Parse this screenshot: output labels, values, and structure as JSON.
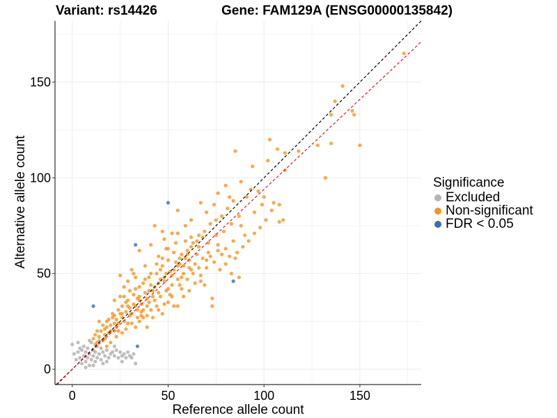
{
  "title_left": "Variant: rs14426",
  "title_right": "Gene: FAM129A (ENSG00000135842)",
  "colors": {
    "excluded": "#b3b3b3",
    "nonsig": "#f7941d",
    "sig": "#3e6ea8",
    "identity_line": "#000000",
    "fit_line": "#e3171b"
  },
  "legend": {
    "title": "Significance",
    "items": [
      {
        "label": "Excluded",
        "color": "#b3b3b3"
      },
      {
        "label": "Non-significant",
        "color": "#f7941d"
      },
      {
        "label": "FDR < 0.05",
        "color": "#3e6ea8"
      }
    ]
  },
  "chart_data": {
    "type": "scatter",
    "xlabel": "Reference allele count",
    "ylabel": "Alternative allele count",
    "xlim": [
      -9,
      182
    ],
    "ylim": [
      -8,
      182
    ],
    "xticks": [
      0,
      50,
      100,
      150
    ],
    "yticks": [
      0,
      50,
      100,
      150
    ],
    "grid": true,
    "legend_position": "right",
    "reference_lines": [
      {
        "name": "identity",
        "slope": 1.0,
        "intercept": 0,
        "style": "dashed"
      },
      {
        "name": "fit",
        "slope": 0.94,
        "intercept": 0,
        "style": "dashed"
      }
    ],
    "series": [
      {
        "name": "Excluded",
        "points": [
          [
            0,
            13
          ],
          [
            1,
            8
          ],
          [
            2,
            5
          ],
          [
            3,
            9
          ],
          [
            4,
            6
          ],
          [
            5,
            10
          ],
          [
            5,
            3
          ],
          [
            6,
            7
          ],
          [
            6,
            12
          ],
          [
            7,
            4
          ],
          [
            7,
            9
          ],
          [
            8,
            6
          ],
          [
            8,
            11
          ],
          [
            9,
            2
          ],
          [
            9,
            8
          ],
          [
            10,
            5
          ],
          [
            10,
            14
          ],
          [
            11,
            7
          ],
          [
            11,
            10
          ],
          [
            12,
            4
          ],
          [
            12,
            9
          ],
          [
            13,
            6
          ],
          [
            13,
            12
          ],
          [
            14,
            8
          ],
          [
            15,
            5
          ],
          [
            15,
            11
          ],
          [
            16,
            9
          ],
          [
            17,
            7
          ],
          [
            18,
            10
          ],
          [
            19,
            6
          ],
          [
            20,
            8
          ],
          [
            21,
            9
          ],
          [
            22,
            7
          ],
          [
            23,
            10
          ],
          [
            24,
            6
          ],
          [
            25,
            9
          ],
          [
            26,
            7
          ],
          [
            27,
            8
          ],
          [
            28,
            6
          ],
          [
            29,
            9
          ],
          [
            30,
            7
          ],
          [
            31,
            6
          ],
          [
            32,
            8
          ],
          [
            3,
            14
          ],
          [
            14,
            15
          ],
          [
            18,
            4
          ],
          [
            22,
            12
          ],
          [
            33,
            3
          ],
          [
            9,
            15
          ],
          [
            4,
            11
          ],
          [
            16,
            3
          ],
          [
            26,
            4
          ],
          [
            7,
            1
          ],
          [
            11,
            2
          ]
        ]
      },
      {
        "name": "Non-significant",
        "points": [
          [
            173,
            165
          ],
          [
            141,
            148
          ],
          [
            146,
            135
          ],
          [
            147,
            133
          ],
          [
            137,
            140
          ],
          [
            135,
            133
          ],
          [
            150,
            117
          ],
          [
            135,
            118
          ],
          [
            128,
            117
          ],
          [
            132,
            100
          ],
          [
            118,
            114
          ],
          [
            111,
            113
          ],
          [
            107,
            115
          ],
          [
            111,
            104
          ],
          [
            102,
            109
          ],
          [
            103,
            120
          ],
          [
            94,
            106
          ],
          [
            85,
            114
          ],
          [
            93,
            94
          ],
          [
            97,
            93
          ],
          [
            100,
            90
          ],
          [
            105,
            87
          ],
          [
            88,
            98
          ],
          [
            80,
            96
          ],
          [
            82,
            90
          ],
          [
            91,
            90
          ],
          [
            110,
            78
          ],
          [
            108,
            77
          ],
          [
            108,
            86
          ],
          [
            76,
            92
          ],
          [
            74,
            86
          ],
          [
            67,
            87
          ],
          [
            70,
            82
          ],
          [
            62,
            78
          ],
          [
            55,
            83
          ],
          [
            59,
            75
          ],
          [
            55,
            71
          ],
          [
            48,
            68
          ],
          [
            66,
            64
          ],
          [
            62,
            69
          ],
          [
            71,
            66
          ],
          [
            84,
            67
          ],
          [
            80,
            63
          ],
          [
            76,
            65
          ],
          [
            85,
            58
          ],
          [
            78,
            60
          ],
          [
            88,
            75
          ],
          [
            70,
            57
          ],
          [
            62,
            52
          ],
          [
            69,
            44
          ],
          [
            83,
            50
          ],
          [
            87,
            48
          ],
          [
            73,
            37
          ],
          [
            73,
            33
          ],
          [
            55,
            33
          ],
          [
            67,
            46
          ],
          [
            95,
            82
          ],
          [
            90,
            70
          ],
          [
            99,
            86
          ],
          [
            60,
            60
          ],
          [
            45,
            59
          ],
          [
            47,
            72
          ],
          [
            43,
            75
          ],
          [
            52,
            71
          ],
          [
            49,
            63
          ],
          [
            41,
            65
          ],
          [
            46,
            52
          ],
          [
            38,
            54
          ],
          [
            35,
            62
          ],
          [
            32,
            50
          ],
          [
            33,
            48
          ],
          [
            40,
            48
          ],
          [
            25,
            38
          ],
          [
            22,
            36
          ],
          [
            25,
            49
          ],
          [
            29,
            46
          ],
          [
            27,
            43
          ],
          [
            30,
            41
          ],
          [
            31,
            52
          ],
          [
            37,
            45
          ],
          [
            35,
            36
          ],
          [
            42,
            38
          ],
          [
            45,
            40
          ],
          [
            50,
            42
          ],
          [
            48,
            46
          ],
          [
            52,
            49
          ],
          [
            55,
            54
          ],
          [
            58,
            50
          ],
          [
            56,
            44
          ],
          [
            52,
            38
          ],
          [
            48,
            34
          ],
          [
            41,
            31
          ],
          [
            36,
            28
          ],
          [
            34,
            31
          ],
          [
            30,
            32
          ],
          [
            28,
            30
          ],
          [
            26,
            33
          ],
          [
            24,
            31
          ],
          [
            21,
            29
          ],
          [
            19,
            26
          ],
          [
            18,
            22
          ],
          [
            17,
            18
          ],
          [
            15,
            20
          ],
          [
            14,
            25
          ],
          [
            12,
            18
          ],
          [
            13,
            14
          ],
          [
            16,
            15
          ],
          [
            18,
            12
          ],
          [
            20,
            14
          ],
          [
            23,
            17
          ],
          [
            26,
            19
          ],
          [
            28,
            21
          ],
          [
            31,
            24
          ],
          [
            33,
            22
          ],
          [
            35,
            25
          ],
          [
            37,
            27
          ],
          [
            39,
            22
          ],
          [
            42,
            27
          ],
          [
            45,
            31
          ],
          [
            47,
            29
          ],
          [
            50,
            35
          ],
          [
            53,
            33
          ],
          [
            58,
            38
          ],
          [
            61,
            41
          ],
          [
            64,
            45
          ],
          [
            67,
            49
          ],
          [
            70,
            53
          ],
          [
            74,
            56
          ],
          [
            77,
            52
          ],
          [
            80,
            55
          ],
          [
            82,
            59
          ],
          [
            86,
            61
          ],
          [
            89,
            64
          ],
          [
            92,
            67
          ],
          [
            95,
            71
          ],
          [
            98,
            74
          ],
          [
            101,
            78
          ],
          [
            104,
            83
          ],
          [
            64,
            55
          ],
          [
            60,
            47
          ],
          [
            56,
            58
          ],
          [
            53,
            61
          ],
          [
            50,
            57
          ],
          [
            47,
            54
          ],
          [
            44,
            50
          ],
          [
            41,
            44
          ],
          [
            38,
            40
          ],
          [
            35,
            43
          ],
          [
            32,
            39
          ],
          [
            29,
            36
          ],
          [
            26,
            27
          ],
          [
            23,
            26
          ],
          [
            20,
            23
          ],
          [
            17,
            21
          ],
          [
            14,
            17
          ],
          [
            12,
            13
          ],
          [
            11,
            16
          ],
          [
            22,
            20
          ],
          [
            24,
            24
          ],
          [
            27,
            25
          ],
          [
            30,
            28
          ],
          [
            33,
            33
          ],
          [
            36,
            34
          ],
          [
            39,
            37
          ],
          [
            42,
            41
          ],
          [
            45,
            45
          ],
          [
            48,
            48
          ],
          [
            51,
            51
          ],
          [
            54,
            56
          ],
          [
            57,
            60
          ],
          [
            60,
            62
          ],
          [
            63,
            66
          ],
          [
            66,
            70
          ],
          [
            69,
            72
          ],
          [
            72,
            76
          ],
          [
            75,
            78
          ],
          [
            78,
            80
          ],
          [
            81,
            84
          ],
          [
            84,
            88
          ],
          [
            31,
            29
          ],
          [
            34,
            37
          ],
          [
            37,
            31
          ],
          [
            40,
            35
          ],
          [
            43,
            36
          ],
          [
            46,
            38
          ],
          [
            49,
            41
          ],
          [
            52,
            44
          ],
          [
            55,
            47
          ],
          [
            58,
            54
          ],
          [
            61,
            57
          ],
          [
            65,
            60
          ],
          [
            68,
            58
          ],
          [
            71,
            61
          ],
          [
            75,
            70
          ],
          [
            79,
            72
          ],
          [
            83,
            76
          ],
          [
            87,
            80
          ],
          [
            28,
            35
          ],
          [
            25,
            29
          ],
          [
            22,
            24
          ],
          [
            19,
            19
          ],
          [
            16,
            23
          ],
          [
            13,
            20
          ],
          [
            38,
            47
          ],
          [
            41,
            50
          ],
          [
            44,
            55
          ],
          [
            47,
            58
          ],
          [
            50,
            63
          ],
          [
            40,
            41
          ],
          [
            43,
            43
          ],
          [
            46,
            47
          ],
          [
            49,
            50
          ],
          [
            53,
            52
          ],
          [
            56,
            55
          ],
          [
            59,
            58
          ],
          [
            62,
            64
          ],
          [
            65,
            67
          ],
          [
            68,
            69
          ],
          [
            35,
            38
          ],
          [
            32,
            34
          ],
          [
            29,
            33
          ],
          [
            26,
            29
          ],
          [
            23,
            22
          ],
          [
            20,
            20
          ],
          [
            17,
            16
          ],
          [
            21,
            27
          ],
          [
            27,
            38
          ],
          [
            33,
            42
          ],
          [
            39,
            33
          ],
          [
            44,
            33
          ],
          [
            51,
            39
          ],
          [
            57,
            42
          ],
          [
            63,
            50
          ],
          [
            66,
            53
          ],
          [
            72,
            59
          ],
          [
            76,
            62
          ],
          [
            59,
            67
          ],
          [
            54,
            66
          ],
          [
            57,
            48
          ],
          [
            61,
            53
          ],
          [
            39,
            28
          ],
          [
            36,
            30
          ],
          [
            24,
            20
          ],
          [
            22,
            28
          ],
          [
            18,
            25
          ],
          [
            29,
            24
          ],
          [
            34,
            27
          ]
        ]
      },
      {
        "name": "FDR < 0.05",
        "points": [
          [
            50,
            87
          ],
          [
            33,
            65
          ],
          [
            84,
            46
          ],
          [
            11,
            33
          ],
          [
            34,
            12
          ]
        ]
      }
    ]
  }
}
